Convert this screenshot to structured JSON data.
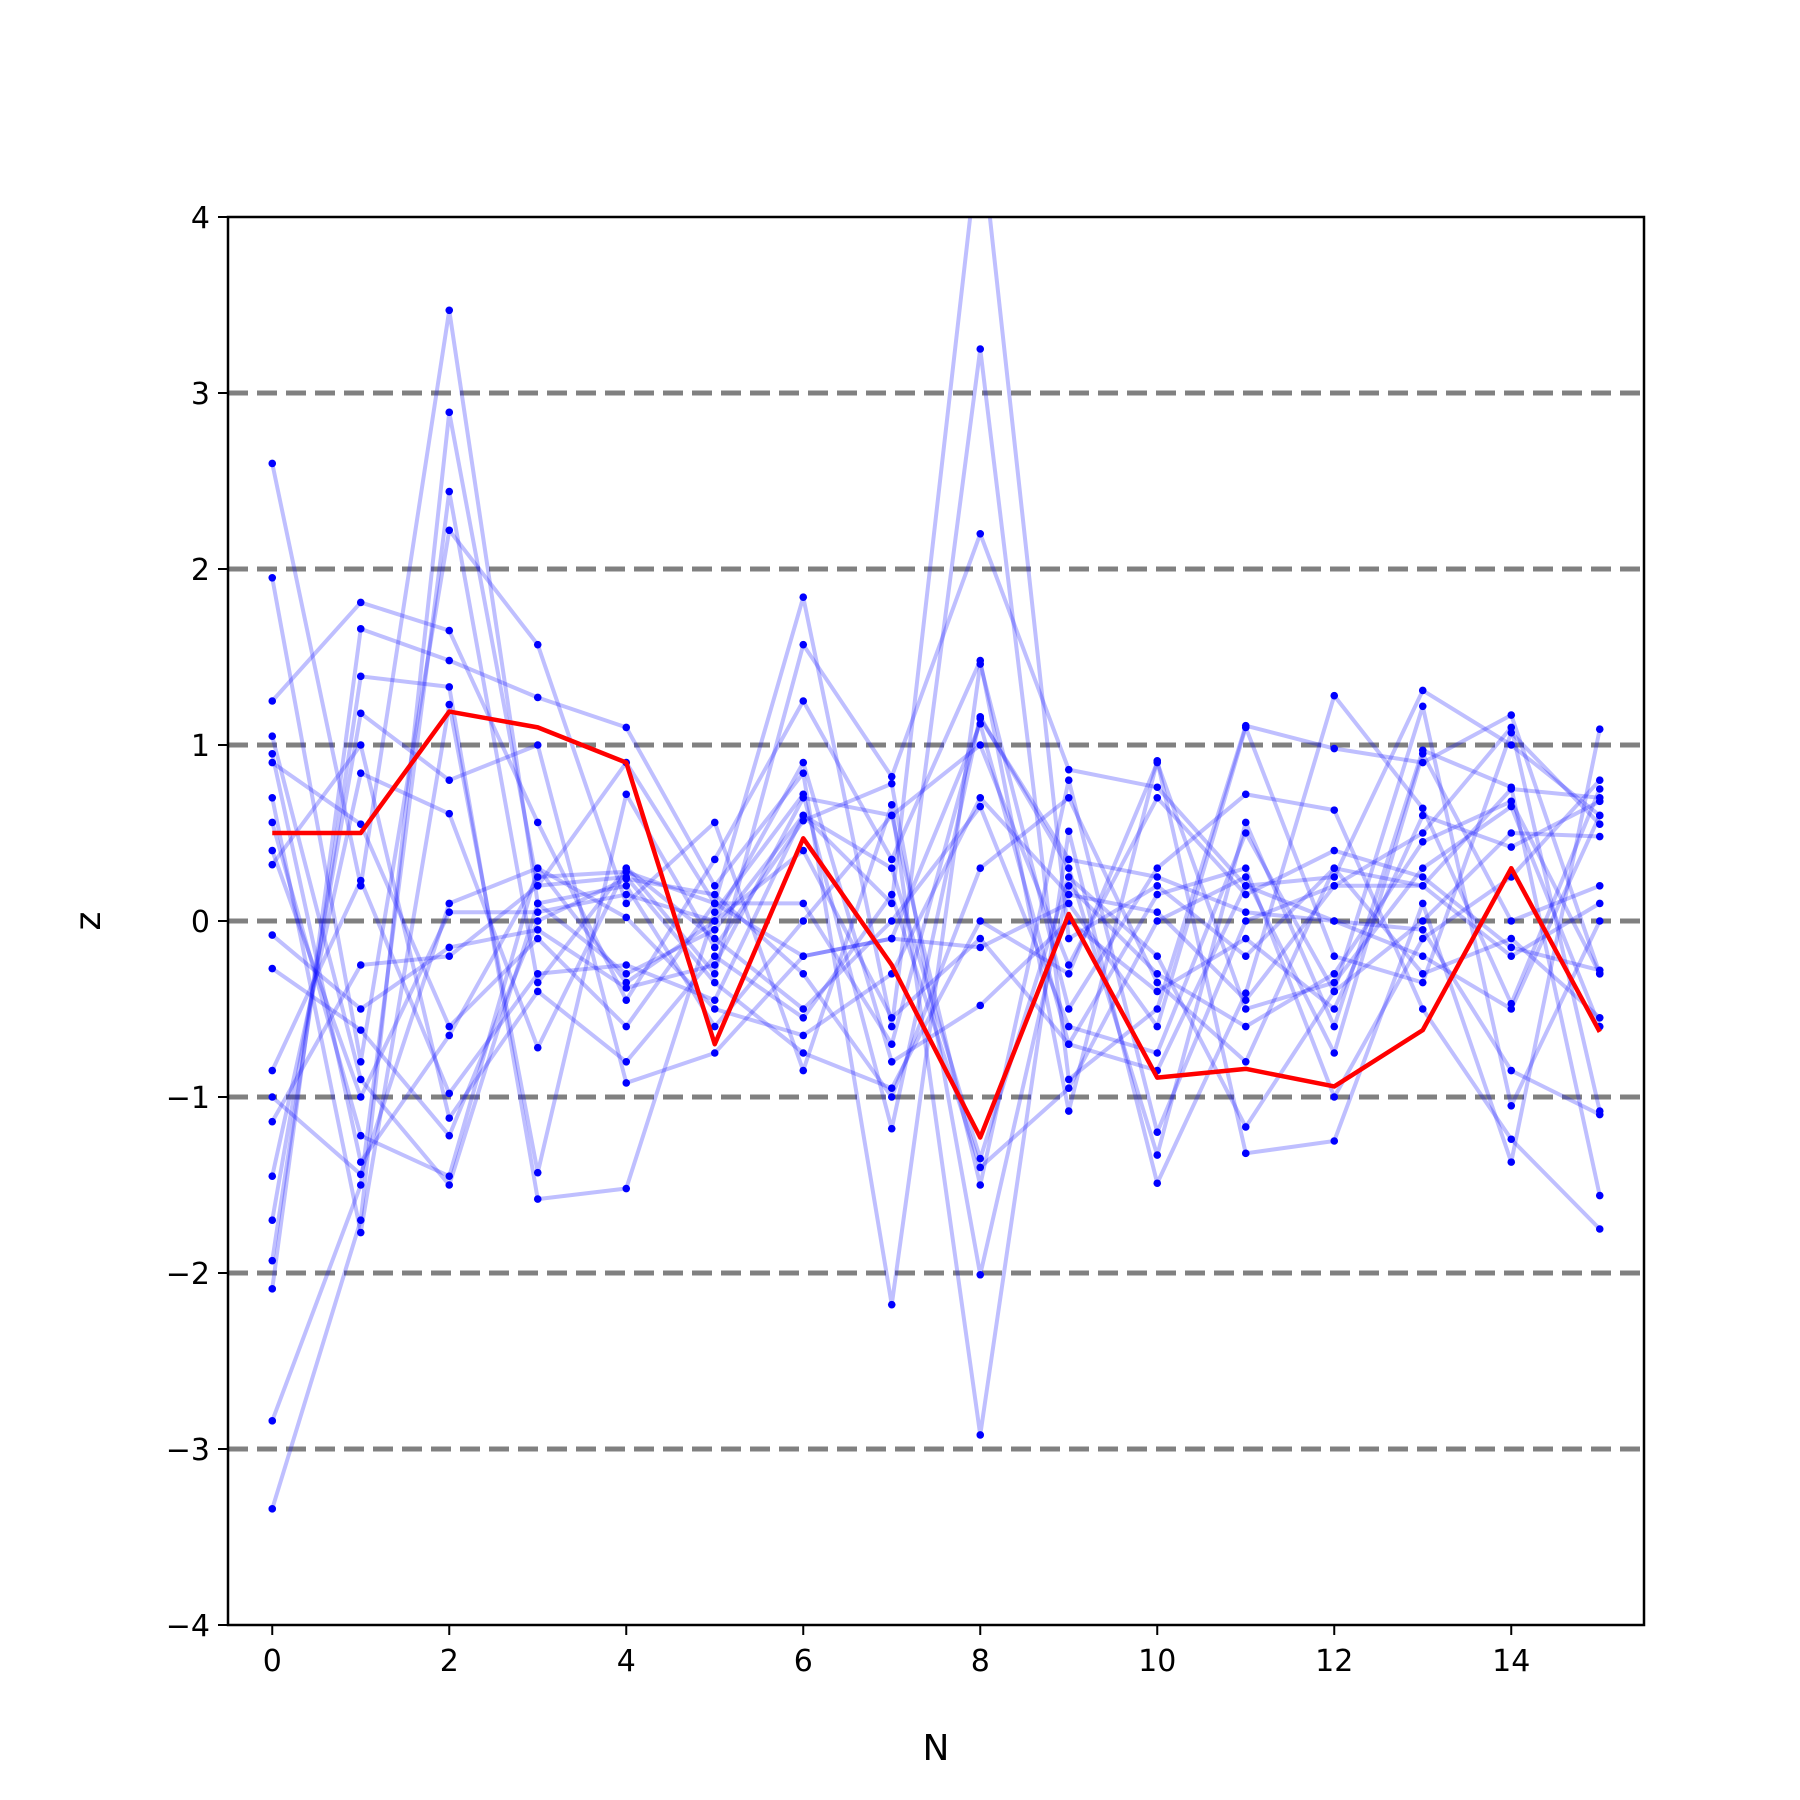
{
  "chart_data": {
    "type": "line",
    "title": "",
    "xlabel": "N",
    "ylabel": "z",
    "xlim": [
      -0.5,
      15.5
    ],
    "ylim": [
      -4,
      4
    ],
    "xticks": [
      0,
      2,
      4,
      6,
      8,
      10,
      12,
      14
    ],
    "xtick_labels": [
      "0",
      "2",
      "4",
      "6",
      "8",
      "10",
      "12",
      "14"
    ],
    "yticks": [
      -4,
      -3,
      -2,
      -1,
      0,
      1,
      2,
      3,
      4
    ],
    "ytick_labels": [
      "−4",
      "−3",
      "−2",
      "−1",
      "0",
      "1",
      "2",
      "3",
      "4"
    ],
    "reference_lines": [
      -3,
      -2,
      -1,
      0,
      1,
      2,
      3
    ],
    "reference_line_style": "dashed",
    "reference_line_color": "#808080",
    "grid": false,
    "legend": false,
    "ensemble_color": "#0000ff",
    "ensemble_line_opacity": 0.25,
    "highlight_color": "#ff0000",
    "x": [
      0,
      1,
      2,
      3,
      4,
      5,
      6,
      7,
      8,
      9,
      10,
      11,
      12,
      13,
      14,
      15
    ],
    "series": [
      {
        "values": [
          0.5,
          0.5,
          1.19,
          1.1,
          0.9,
          -0.7,
          0.47,
          -0.25,
          -1.23,
          0.04,
          -0.89,
          -0.84,
          -0.94,
          -0.62,
          0.3,
          -0.63
        ],
        "highlight": true
      },
      {
        "values": [
          2.6,
          0.2,
          3.47,
          0.1,
          -0.3,
          -0.05,
          0.6,
          0.1,
          4.5,
          -0.1,
          0.2,
          -0.2,
          0.3,
          0.2,
          -0.2,
          0.1
        ],
        "highlight": false
      },
      {
        "values": [
          -3.34,
          -1.7,
          2.89,
          0.2,
          0.9,
          0.1,
          1.84,
          -0.6,
          3.25,
          -0.9,
          -0.5,
          1.11,
          0.98,
          0.9,
          1.17,
          -0.3
        ],
        "highlight": false
      },
      {
        "values": [
          -2.84,
          -1.5,
          2.44,
          -0.35,
          0.3,
          -0.3,
          1.57,
          0.82,
          2.2,
          0.86,
          0.76,
          0.2,
          0.25,
          1.31,
          1.0,
          0.6
        ],
        "highlight": false
      },
      {
        "values": [
          1.95,
          -0.8,
          2.22,
          1.57,
          0.1,
          0.56,
          -0.85,
          0.66,
          -2.92,
          0.51,
          -1.49,
          -0.41,
          1.28,
          0.64,
          -0.47,
          0.75
        ],
        "highlight": false
      },
      {
        "values": [
          1.25,
          1.81,
          1.65,
          0.56,
          -0.45,
          0.35,
          1.25,
          0.35,
          1.48,
          -1.08,
          0.91,
          -1.32,
          -1.25,
          0.1,
          -1.37,
          1.09
        ],
        "highlight": false
      },
      {
        "values": [
          -2.09,
          1.66,
          1.48,
          1.27,
          1.1,
          0.2,
          0.84,
          -2.18,
          1.46,
          -0.5,
          0.3,
          0.72,
          0.63,
          -0.5,
          -1.24,
          -1.75
        ],
        "highlight": false
      },
      {
        "values": [
          -1.93,
          1.39,
          1.33,
          -1.58,
          -1.52,
          0.05,
          0.72,
          -1.18,
          1.16,
          0.3,
          -1.33,
          0.56,
          -0.6,
          0.97,
          0.76,
          -1.56
        ],
        "highlight": false
      },
      {
        "values": [
          0.7,
          -1.77,
          1.23,
          -1.43,
          0.72,
          -0.15,
          0.57,
          0.78,
          -2.01,
          0.2,
          -0.3,
          -0.6,
          -0.3,
          0.45,
          0.68,
          -0.3
        ],
        "highlight": false
      },
      {
        "values": [
          -1.7,
          1.18,
          0.8,
          1.0,
          -0.92,
          -0.75,
          -0.2,
          -0.1,
          1.12,
          -0.7,
          0.15,
          0.3,
          -1.0,
          -0.1,
          0.25,
          0.8
        ],
        "highlight": false
      },
      {
        "values": [
          1.05,
          -0.9,
          -1.5,
          0.1,
          0.2,
          -0.6,
          0.0,
          0.6,
          -1.5,
          0.8,
          -1.2,
          0.0,
          0.2,
          0.5,
          1.1,
          -1.08
        ],
        "highlight": false
      },
      {
        "values": [
          -1.45,
          0.84,
          0.61,
          -0.72,
          0.3,
          -0.1,
          -0.5,
          0.0,
          0.65,
          -0.6,
          -0.75,
          0.5,
          -0.4,
          0.0,
          0.5,
          0.48
        ],
        "highlight": false
      },
      {
        "values": [
          0.56,
          -1.22,
          -1.45,
          0.3,
          -0.35,
          0.0,
          0.9,
          -0.8,
          -0.48,
          0.0,
          -0.4,
          -0.1,
          -0.5,
          0.6,
          0.42,
          0.68
        ],
        "highlight": false
      },
      {
        "values": [
          -0.27,
          -0.62,
          -1.22,
          0.0,
          0.24,
          0.15,
          -0.3,
          -1.0,
          0.3,
          0.7,
          -0.35,
          -0.8,
          0.3,
          -0.3,
          -0.1,
          -0.55
        ],
        "highlight": false
      },
      {
        "values": [
          0.32,
          1.0,
          -1.12,
          -0.4,
          -0.8,
          -0.2,
          -0.55,
          0.15,
          -1.4,
          -0.95,
          0.0,
          0.25,
          -0.75,
          0.95,
          0.0,
          0.2
        ],
        "highlight": false
      },
      {
        "values": [
          -1.0,
          -1.44,
          0.1,
          0.3,
          0.02,
          -0.5,
          -0.65,
          -0.3,
          0.7,
          0.15,
          0.05,
          -0.45,
          0.2,
          0.2,
          0.75,
          0.7
        ],
        "highlight": false
      },
      {
        "values": [
          0.9,
          0.55,
          -0.6,
          -0.1,
          -0.6,
          0.1,
          0.1,
          -0.7,
          1.15,
          0.35,
          0.25,
          0.05,
          0.0,
          -0.2,
          -0.5,
          0.6
        ],
        "highlight": false
      },
      {
        "values": [
          -1.14,
          -0.25,
          -0.2,
          0.2,
          0.25,
          -0.35,
          -0.75,
          -0.95,
          0.0,
          -0.3,
          0.9,
          -0.5,
          -0.35,
          0.3,
          0.65,
          -0.6
        ],
        "highlight": false
      },
      {
        "values": [
          0.4,
          -1.0,
          0.05,
          0.05,
          0.15,
          0.0,
          0.4,
          -0.55,
          -0.1,
          -0.7,
          -0.85,
          0.2,
          0.0,
          -0.05,
          -0.85,
          -1.1
        ],
        "highlight": false
      },
      {
        "values": [
          -0.85,
          0.23,
          -0.98,
          -0.3,
          -0.25,
          -0.45,
          0.6,
          0.3,
          -1.35,
          0.25,
          -0.2,
          -1.17,
          -0.4,
          1.22,
          -1.05,
          0.0
        ],
        "highlight": false
      },
      {
        "values": [
          0.95,
          -1.37,
          -0.65,
          0.25,
          0.28,
          0.1,
          -0.2,
          -0.1,
          -0.15,
          0.1,
          -0.6,
          1.1,
          -0.2,
          -0.35,
          1.07,
          0.55
        ],
        "highlight": false
      },
      {
        "values": [
          -0.08,
          -0.5,
          -0.15,
          -0.05,
          -0.38,
          -0.25,
          0.7,
          0.6,
          1.0,
          -0.25,
          0.7,
          0.15,
          0.4,
          0.25,
          -0.15,
          -0.28
        ],
        "highlight": false
      }
    ]
  }
}
